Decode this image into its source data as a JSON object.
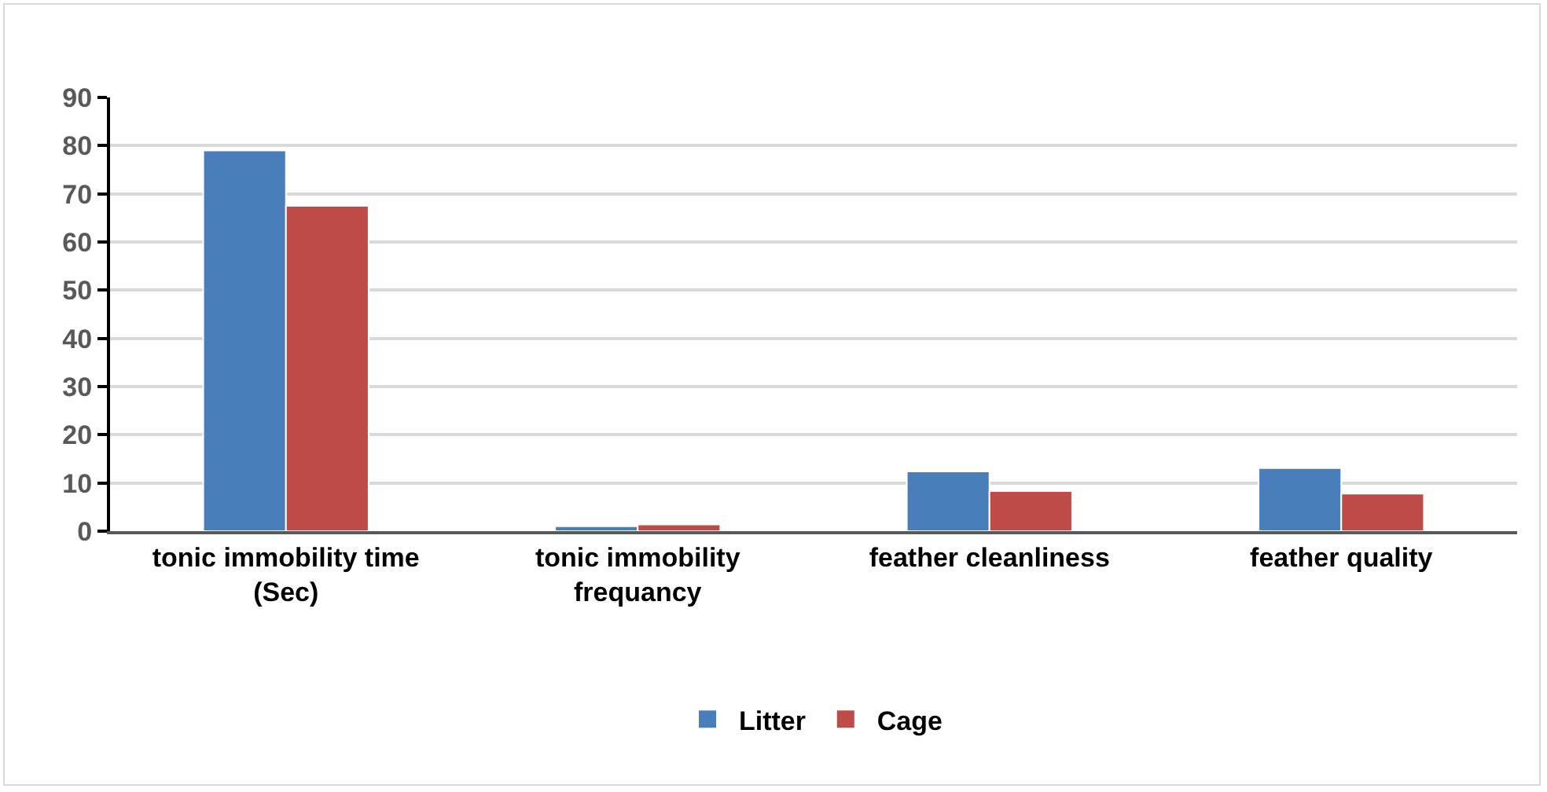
{
  "chart_data": {
    "type": "bar",
    "categories": [
      "tonic immobility time (Sec)",
      "tonic immobility frequancy",
      "feather cleanliness",
      "feather quality"
    ],
    "series": [
      {
        "name": "Litter",
        "color": "#4a7ebb",
        "values": [
          79,
          1.0,
          12.4,
          13.1
        ]
      },
      {
        "name": "Cage",
        "color": "#be4b48",
        "values": [
          67.5,
          1.4,
          8.3,
          7.8
        ]
      }
    ],
    "ylim": [
      0,
      90
    ],
    "yticks": [
      0,
      10,
      20,
      30,
      40,
      50,
      60,
      70,
      80,
      90
    ],
    "grid": "y",
    "legend": "bottom"
  }
}
